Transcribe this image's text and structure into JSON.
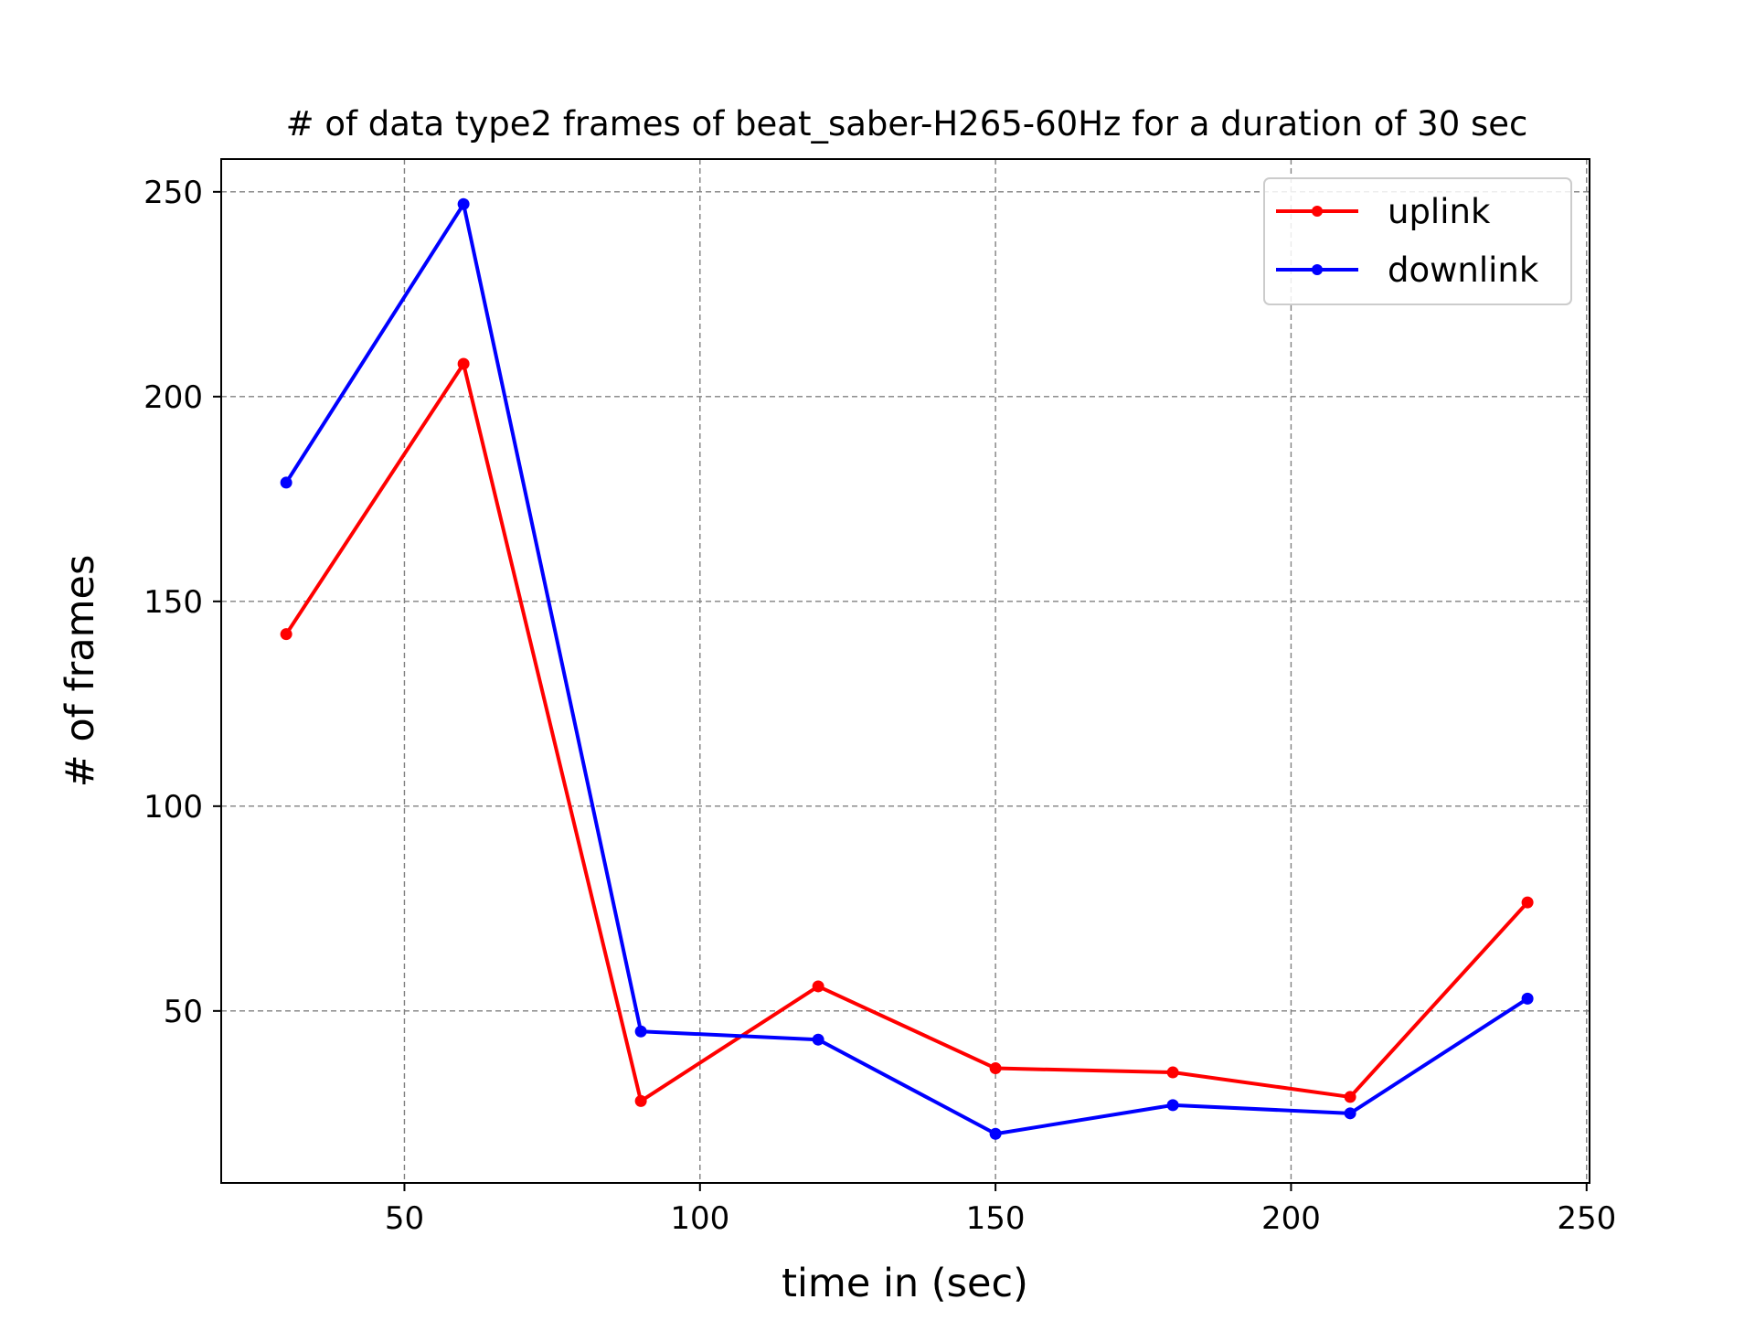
{
  "chart_data": {
    "type": "line",
    "title": "# of data type2 frames of beat_saber-H265-60Hz for a duration of 30 sec",
    "xlabel": "time in (sec)",
    "ylabel": "# of frames",
    "xlim": [
      19,
      250.5
    ],
    "ylim": [
      8,
      258
    ],
    "xticks": [
      50,
      100,
      150,
      200,
      250
    ],
    "yticks": [
      50,
      100,
      150,
      200,
      250
    ],
    "x": [
      30,
      60,
      90,
      120,
      150,
      180,
      210,
      240
    ],
    "series": [
      {
        "name": "uplink",
        "color": "#ff0000",
        "values": [
          142,
          208,
          28,
          56,
          36,
          35,
          29,
          76.5
        ]
      },
      {
        "name": "downlink",
        "color": "#0000ff",
        "values": [
          179,
          247,
          45,
          43,
          20,
          27,
          25,
          53
        ]
      }
    ],
    "grid": true,
    "legend_position": "top-right",
    "marker": "circle"
  }
}
